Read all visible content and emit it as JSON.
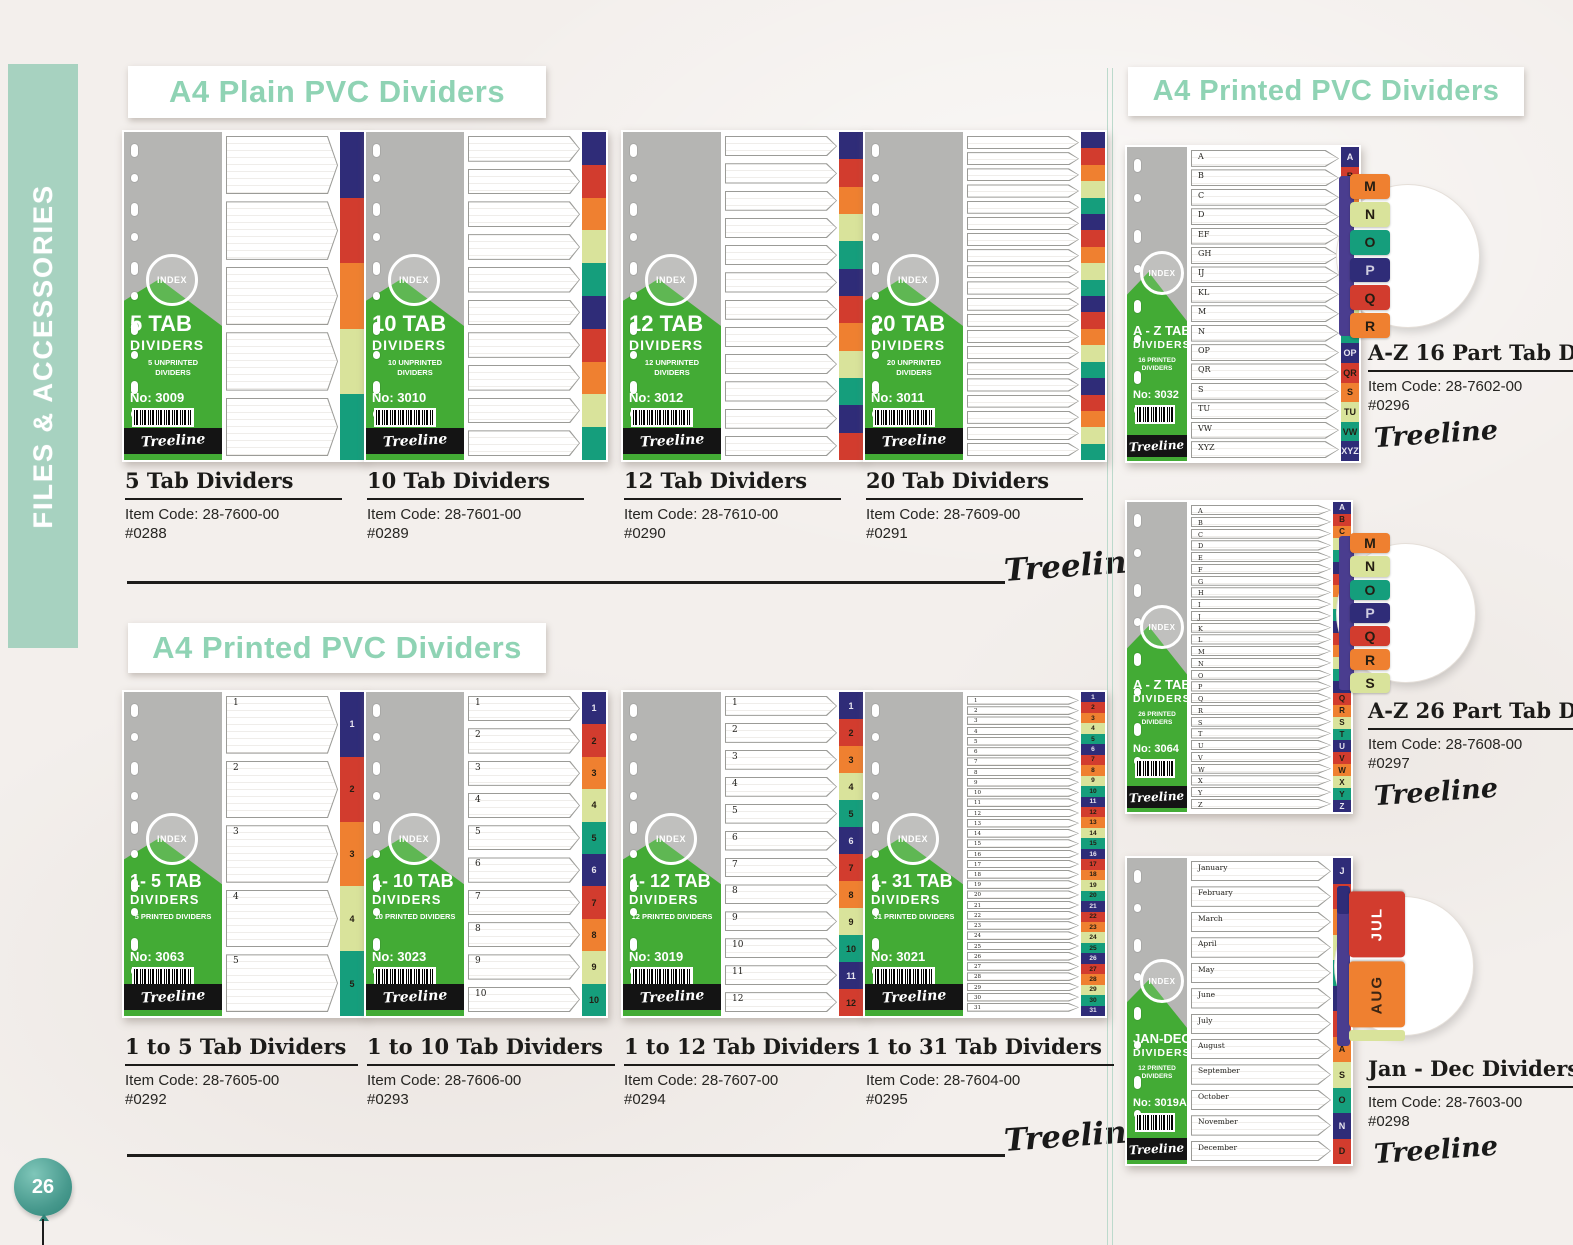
{
  "page": {
    "sidebar_label": "FILES & ACCESSORIES",
    "page_number": "26",
    "signature": "Treeline",
    "index_badge": "INDEX"
  },
  "colors": {
    "background": "#f3efec",
    "sidebar_band": "#a7d2c0",
    "heading_text": "#8fd3b4",
    "card_green": "#43ab35",
    "card_gray": "#b5b5b3",
    "footer_black": "#141414",
    "detail_bar": "#4a3d8f",
    "tab_cycle": [
      "#2f2c78",
      "#d23c2e",
      "#ef8030",
      "#d9e39b",
      "#159e7c"
    ]
  },
  "sections": {
    "plain": {
      "title": "A4 Plain PVC Dividers",
      "products": [
        {
          "name": "5 Tab Dividers",
          "item_code": "Item Code: 28-7600-00",
          "ref": "#0288",
          "card_title": "5 TAB",
          "card_sub": "DIVIDERS",
          "card_desc": "5 UNPRINTED DIVIDERS",
          "card_no": "No: 3009",
          "tabs": 5
        },
        {
          "name": "10 Tab Dividers",
          "item_code": "Item Code: 28-7601-00",
          "ref": "#0289",
          "card_title": "10 TAB",
          "card_sub": "DIVIDERS",
          "card_desc": "10 UNPRINTED DIVIDERS",
          "card_no": "No: 3010",
          "tabs": 10
        },
        {
          "name": "12 Tab Dividers",
          "item_code": "Item Code: 28-7610-00",
          "ref": "#0290",
          "card_title": "12 TAB",
          "card_sub": "DIVIDERS",
          "card_desc": "12 UNPRINTED DIVIDERS",
          "card_no": "No: 3012",
          "tabs": 12
        },
        {
          "name": "20 Tab Dividers",
          "item_code": "Item Code: 28-7609-00",
          "ref": "#0291",
          "card_title": "20 TAB",
          "card_sub": "DIVIDERS",
          "card_desc": "20 UNPRINTED DIVIDERS",
          "card_no": "No: 3011",
          "tabs": 20
        }
      ]
    },
    "printed": {
      "title": "A4 Printed PVC Dividers",
      "products": [
        {
          "name": "1 to 5 Tab Dividers",
          "item_code": "Item Code: 28-7605-00",
          "ref": "#0292",
          "card_title": "1- 5 TAB",
          "card_sub": "DIVIDERS",
          "card_desc": "5 PRINTED DIVIDERS",
          "card_no": "No: 3063",
          "tabs": 5,
          "labels": [
            "1",
            "2",
            "3",
            "4",
            "5"
          ]
        },
        {
          "name": "1 to 10 Tab Dividers",
          "item_code": "Item Code: 28-7606-00",
          "ref": "#0293",
          "card_title": "1- 10 TAB",
          "card_sub": "DIVIDERS",
          "card_desc": "10 PRINTED DIVIDERS",
          "card_no": "No: 3023",
          "tabs": 10,
          "labels": [
            "1",
            "2",
            "3",
            "4",
            "5",
            "6",
            "7",
            "8",
            "9",
            "10"
          ]
        },
        {
          "name": "1 to 12 Tab Dividers",
          "item_code": "Item Code: 28-7607-00",
          "ref": "#0294",
          "card_title": "1- 12 TAB",
          "card_sub": "DIVIDERS",
          "card_desc": "12 PRINTED DIVIDERS",
          "card_no": "No: 3019",
          "tabs": 12,
          "labels": [
            "1",
            "2",
            "3",
            "4",
            "5",
            "6",
            "7",
            "8",
            "9",
            "10",
            "11",
            "12"
          ]
        },
        {
          "name": "1 to 31 Tab Dividers",
          "item_code": "Item Code: 28-7604-00",
          "ref": "#0295",
          "card_title": "1- 31 TAB",
          "card_sub": "DIVIDERS",
          "card_desc": "31 PRINTED DIVIDERS",
          "card_no": "No: 3021",
          "tabs": 31,
          "labels": [
            "1",
            "2",
            "3",
            "4",
            "5",
            "6",
            "7",
            "8",
            "9",
            "10",
            "11",
            "12",
            "13",
            "14",
            "15",
            "16",
            "17",
            "18",
            "19",
            "20",
            "21",
            "22",
            "23",
            "24",
            "25",
            "26",
            "27",
            "28",
            "29",
            "30",
            "31"
          ]
        }
      ]
    },
    "special": {
      "title": "A4 Printed PVC Dividers",
      "products": [
        {
          "name": "A-Z 16 Part Tab Dividers",
          "item_code": "Item Code: 28-7602-00",
          "ref": "#0296",
          "card_title": "A - Z TAB",
          "card_sub": "DIVIDERS",
          "card_desc": "16 PRINTED DIVIDERS",
          "card_no": "No: 3032",
          "labels": [
            "A",
            "B",
            "C",
            "D",
            "EF",
            "GH",
            "IJ",
            "KL",
            "M",
            "N",
            "OP",
            "QR",
            "S",
            "TU",
            "VW",
            "XYZ"
          ],
          "detail_tabs": [
            "M",
            "N",
            "O",
            "P",
            "Q",
            "R"
          ]
        },
        {
          "name": "A-Z 26 Part Tab Dividers",
          "item_code": "Item Code: 28-7608-00",
          "ref": "#0297",
          "card_title": "A - Z TAB",
          "card_sub": "DIVIDERS",
          "card_desc": "26 PRINTED DIVIDERS",
          "card_no": "No: 3064",
          "labels": [
            "A",
            "B",
            "C",
            "D",
            "E",
            "F",
            "G",
            "H",
            "I",
            "J",
            "K",
            "L",
            "M",
            "N",
            "O",
            "P",
            "Q",
            "R",
            "S",
            "T",
            "U",
            "V",
            "W",
            "X",
            "Y",
            "Z"
          ],
          "detail_tabs": [
            "M",
            "N",
            "O",
            "P",
            "Q",
            "R",
            "S"
          ]
        },
        {
          "name": "Jan - Dec Dividers",
          "item_code": "Item Code: 28-7603-00",
          "ref": "#0298",
          "card_title": "JAN-DEC",
          "card_sub": "DIVIDERS",
          "card_desc": "12 PRINTED DIVIDERS",
          "card_no": "No: 3019A",
          "labels": [
            "January",
            "February",
            "March",
            "April",
            "May",
            "June",
            "July",
            "August",
            "September",
            "October",
            "November",
            "December"
          ],
          "strip_labels": [
            "J",
            "F",
            "M",
            "A",
            "M",
            "J",
            "J",
            "A",
            "S",
            "O",
            "N",
            "D"
          ],
          "detail_tabs": [
            "JUL",
            "AUG"
          ]
        }
      ]
    }
  }
}
